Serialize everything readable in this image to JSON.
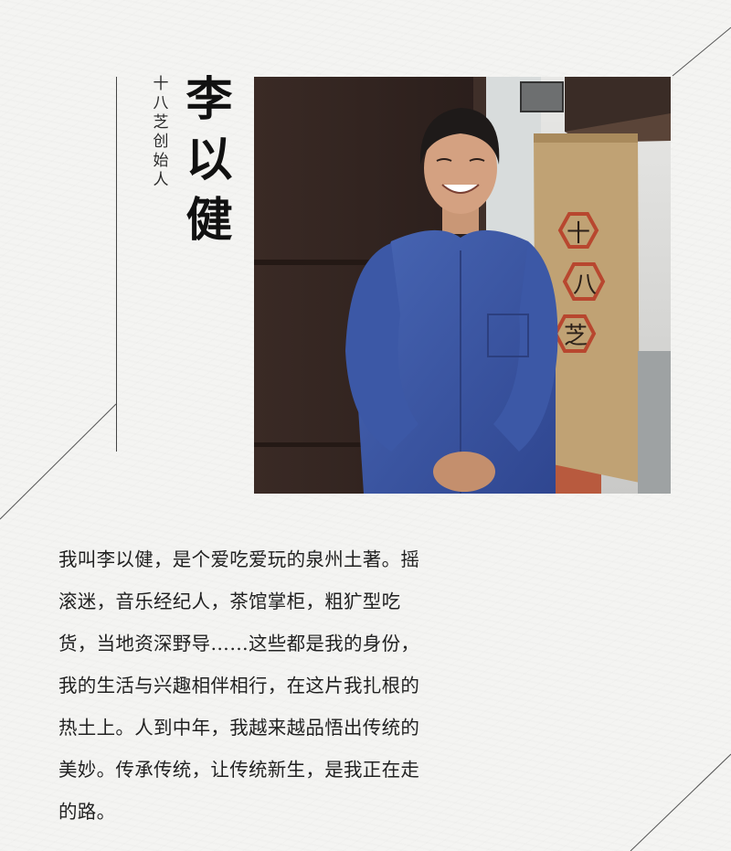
{
  "profile": {
    "subtitle": "十八芝创始人",
    "name": "李以健"
  },
  "photo": {
    "alt_icon": "portrait-photo",
    "banner_text": "十八芝"
  },
  "bio": {
    "lines": [
      "我叫李以健，是个爱吃爱玩的泉州土著。摇",
      "滚迷，音乐经纪人，茶馆掌柜，粗犷型吃",
      "货，当地资深野导……这些都是我的身份，",
      "我的生活与兴趣相伴相行，在这片我扎根的",
      "热土上。人到中年，我越来越品悟出传统的",
      "美妙。传承传统，让传统新生，是我正在走",
      "的路。"
    ]
  },
  "colors": {
    "background": "#f4f4f2",
    "text": "#222222",
    "shirt": "#3b55a3",
    "banner": "#c0a274",
    "banner_mark": "#b8472f"
  }
}
